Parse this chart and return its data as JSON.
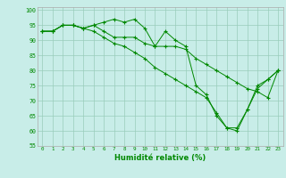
{
  "xlabel": "Humidité relative (%)",
  "background_color": "#c8ede8",
  "grid_color": "#99ccbb",
  "line_color": "#008800",
  "xlim": [
    -0.5,
    23.5
  ],
  "ylim": [
    55,
    101
  ],
  "yticks": [
    55,
    60,
    65,
    70,
    75,
    80,
    85,
    90,
    95,
    100
  ],
  "xticks": [
    0,
    1,
    2,
    3,
    4,
    5,
    6,
    7,
    8,
    9,
    10,
    11,
    12,
    13,
    14,
    15,
    16,
    17,
    18,
    19,
    20,
    21,
    22,
    23
  ],
  "line1": [
    93,
    93,
    95,
    95,
    94,
    95,
    96,
    97,
    96,
    97,
    94,
    88,
    93,
    90,
    88,
    75,
    72,
    65,
    61,
    61,
    67,
    75,
    77,
    80
  ],
  "line2": [
    93,
    93,
    95,
    95,
    94,
    95,
    93,
    91,
    91,
    91,
    89,
    88,
    88,
    88,
    87,
    84,
    82,
    80,
    78,
    76,
    74,
    73,
    71,
    80
  ],
  "line3": [
    93,
    93,
    95,
    95,
    94,
    93,
    91,
    89,
    88,
    86,
    84,
    81,
    79,
    77,
    75,
    73,
    71,
    66,
    61,
    60,
    67,
    74,
    77,
    80
  ]
}
